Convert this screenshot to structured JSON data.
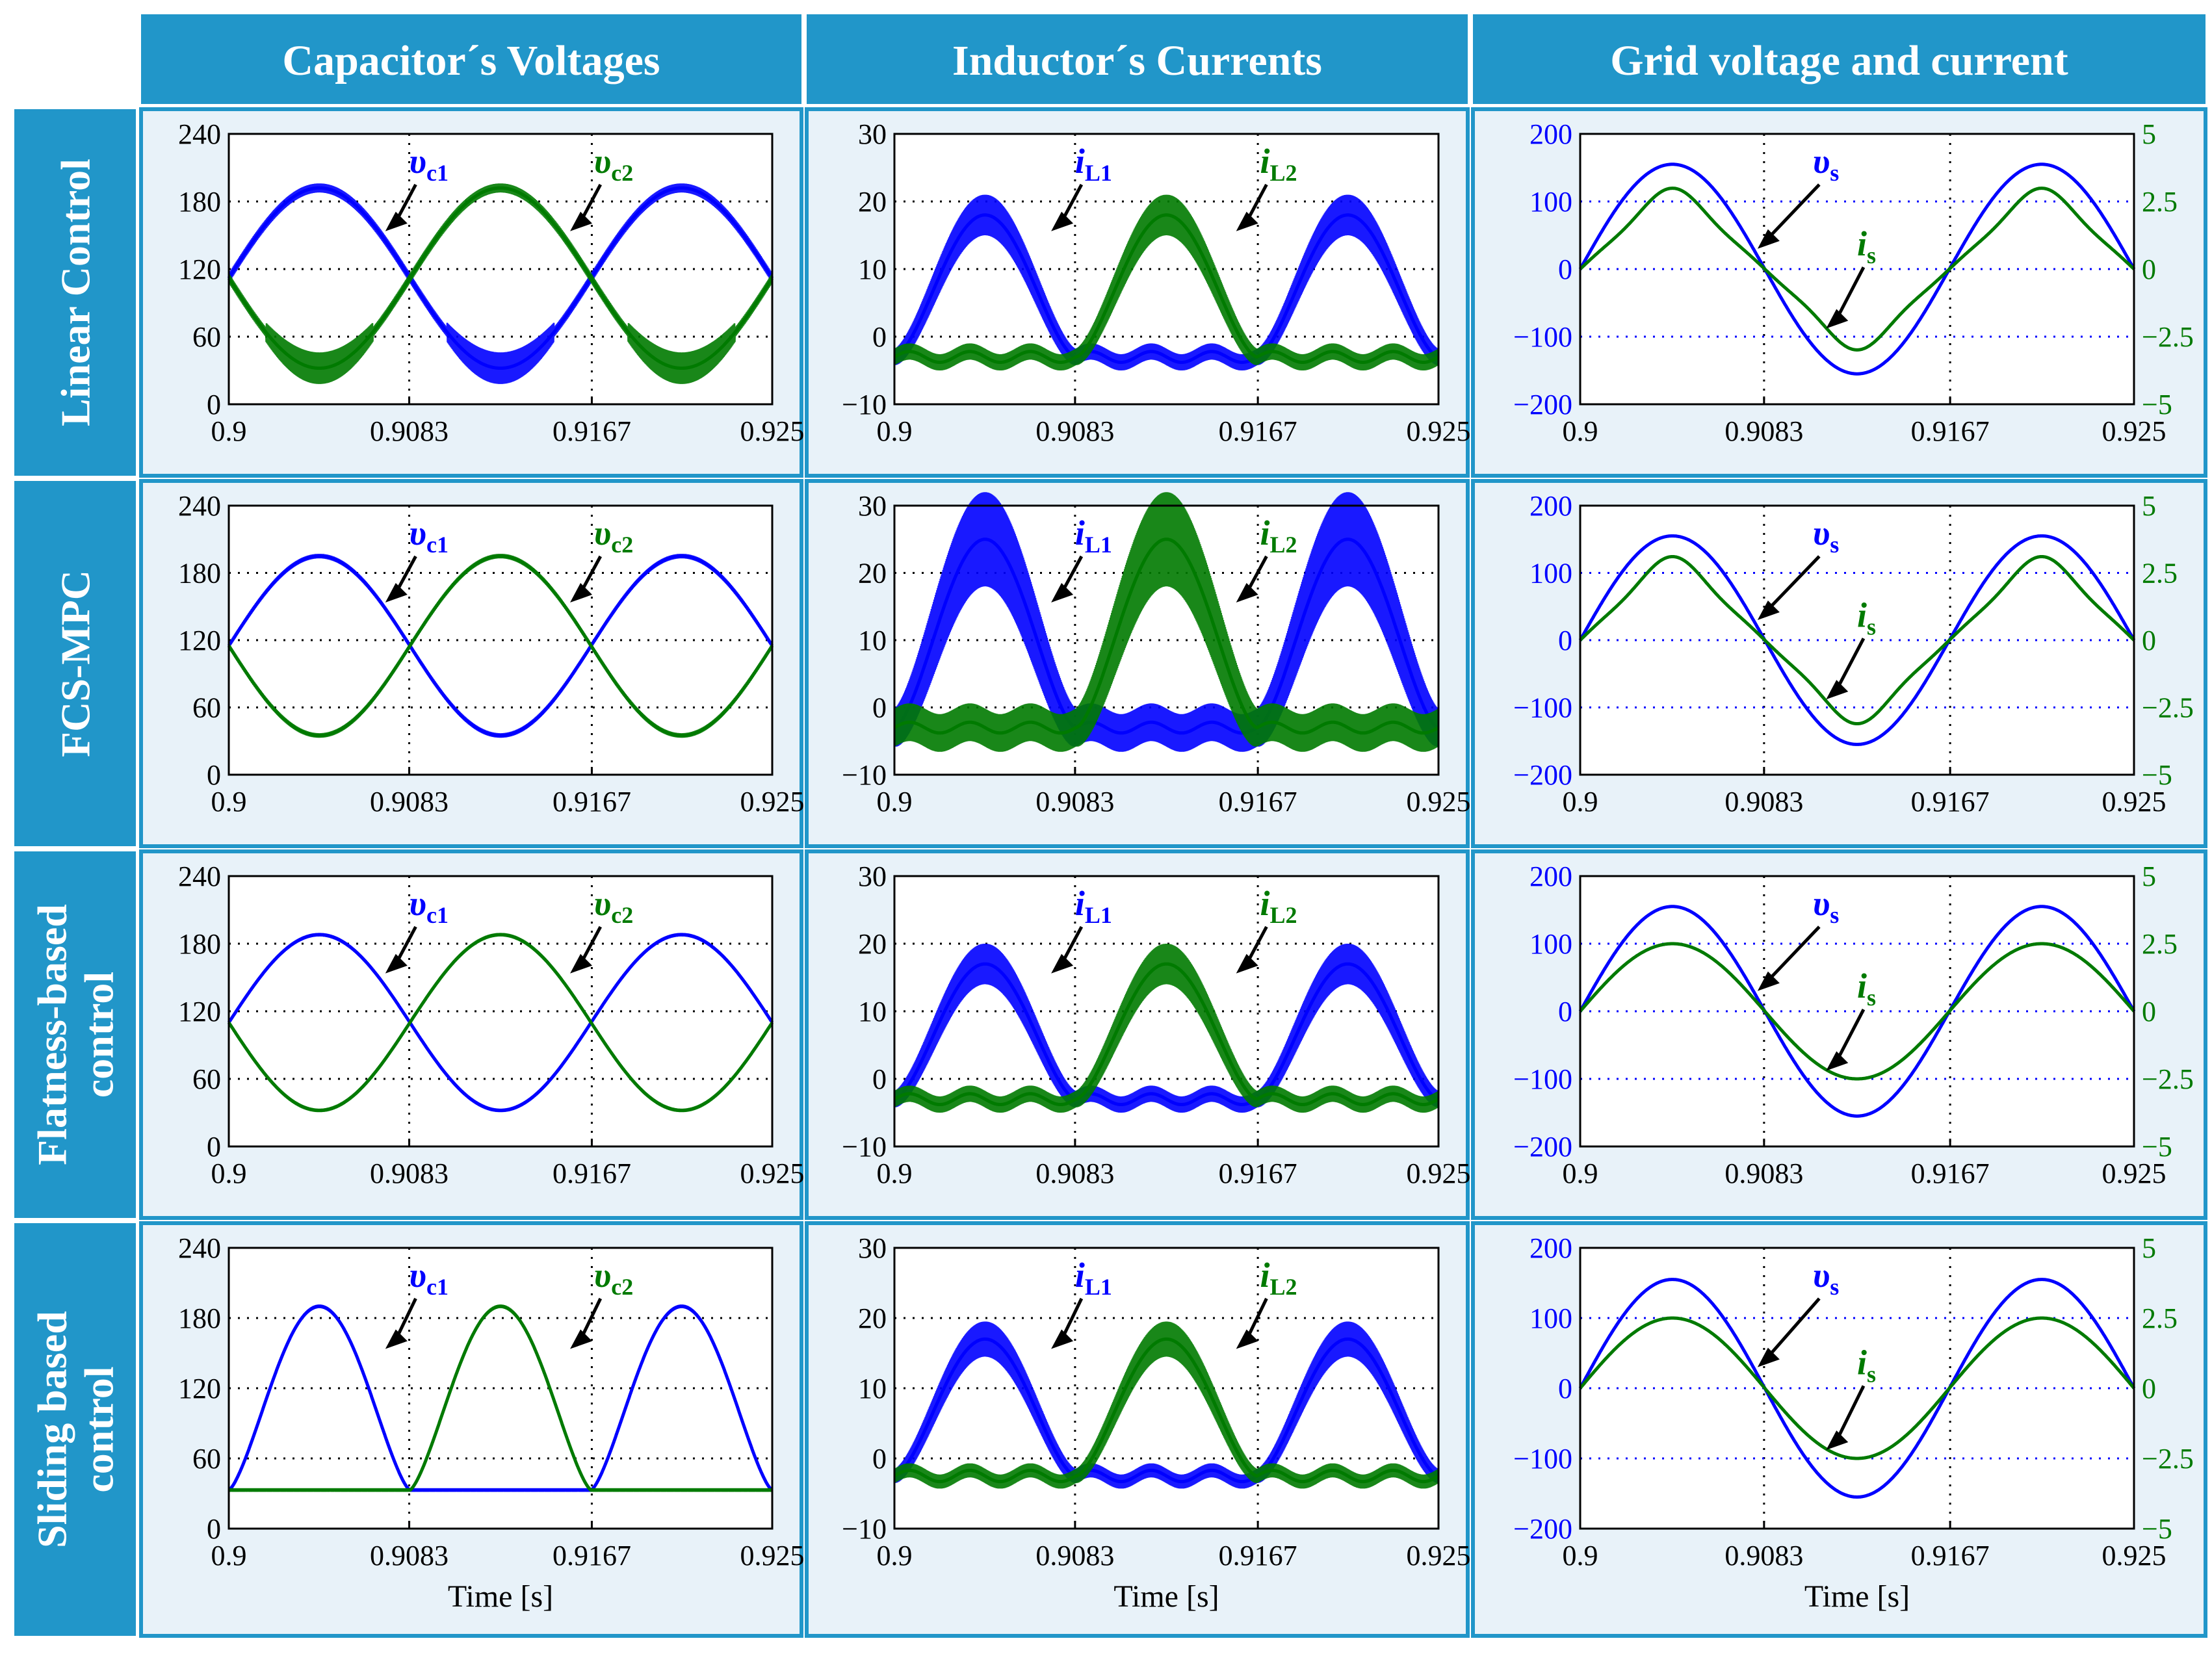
{
  "colors": {
    "header": "#2196c9",
    "panel_bg": "#e8f2f9",
    "cell_border": "#2196c9",
    "blue": "#0000ff",
    "green": "#007a00",
    "grid": "#000000"
  },
  "headers": {
    "col": [
      "Capacitor´s Voltages",
      "Inductor´s Currents",
      "Grid voltage and current"
    ],
    "row": [
      [
        "Linear Control"
      ],
      [
        "FCS-MPC"
      ],
      [
        "Flatness-based",
        "control"
      ],
      [
        "Sliding based",
        "control"
      ]
    ]
  },
  "xlabel": "Time [s]",
  "chart_data": [
    {
      "type": "line",
      "row": 0,
      "col": 0,
      "control": "Linear Control",
      "quantity": "Capacitor´s Voltages",
      "x_ticks": [
        "0.9",
        "0.9083",
        "0.9167",
        "0.925"
      ],
      "xlim": [
        0.9,
        0.925
      ],
      "y_ticks": [
        "0",
        "60",
        "120",
        "180",
        "240"
      ],
      "ylim": [
        0,
        240
      ],
      "waveform": "sine",
      "offset": 112,
      "amplitude": 80,
      "ripple": 4,
      "distortion": "notch",
      "series": [
        {
          "name": "υc1",
          "color": "#0000ff",
          "phase": 0
        },
        {
          "name": "υc2",
          "color": "#007a00",
          "phase": 180
        }
      ]
    },
    {
      "type": "line",
      "row": 0,
      "col": 1,
      "control": "Linear Control",
      "quantity": "Inductor´s Currents",
      "x_ticks": [
        "0.9",
        "0.9083",
        "0.9167",
        "0.925"
      ],
      "xlim": [
        0.9,
        0.925
      ],
      "y_ticks": [
        "−10",
        "0",
        "10",
        "20",
        "30"
      ],
      "ylim": [
        -10,
        30
      ],
      "waveform": "halfwave",
      "peak": 18,
      "floor": -3,
      "ripple": 3,
      "series": [
        {
          "name": "iL1",
          "color": "#0000ff",
          "phase": 0
        },
        {
          "name": "iL2",
          "color": "#007a00",
          "phase": 180
        }
      ]
    },
    {
      "type": "line",
      "row": 0,
      "col": 2,
      "control": "Linear Control",
      "quantity": "Grid voltage and current",
      "x_ticks": [
        "0.9",
        "0.9083",
        "0.9167",
        "0.925"
      ],
      "xlim": [
        0.9,
        0.925
      ],
      "y_ticks": [
        "−200",
        "−100",
        "0",
        "100",
        "200"
      ],
      "ylim": [
        -200,
        200
      ],
      "y2_ticks": [
        "−5",
        "−2.5",
        "0",
        "2.5",
        "5"
      ],
      "y2lim": [
        -5,
        5
      ],
      "series": [
        {
          "name": "υs",
          "axis": "left",
          "color": "#0000ff",
          "amplitude": 155
        },
        {
          "name": "is",
          "axis": "right",
          "color": "#007a00",
          "amplitude": 2.6,
          "distortion": "flat-top"
        }
      ]
    },
    {
      "type": "line",
      "row": 1,
      "col": 0,
      "control": "FCS-MPC",
      "quantity": "Capacitor´s Voltages",
      "x_ticks": [
        "0.9",
        "0.9083",
        "0.9167",
        "0.925"
      ],
      "xlim": [
        0.9,
        0.925
      ],
      "y_ticks": [
        "0",
        "60",
        "120",
        "180",
        "240"
      ],
      "ylim": [
        0,
        240
      ],
      "waveform": "sine",
      "offset": 115,
      "amplitude": 80,
      "ripple": 2,
      "series": [
        {
          "name": "υc1",
          "color": "#0000ff",
          "phase": 0
        },
        {
          "name": "υc2",
          "color": "#007a00",
          "phase": 180
        }
      ]
    },
    {
      "type": "line",
      "row": 1,
      "col": 1,
      "control": "FCS-MPC",
      "quantity": "Inductor´s Currents",
      "x_ticks": [
        "0.9",
        "0.9083",
        "0.9167",
        "0.925"
      ],
      "xlim": [
        0.9,
        0.925
      ],
      "y_ticks": [
        "−10",
        "0",
        "10",
        "20",
        "30"
      ],
      "ylim": [
        -10,
        30
      ],
      "waveform": "halfwave",
      "peak": 25,
      "floor": -3,
      "ripple": 7,
      "series": [
        {
          "name": "iL1",
          "color": "#0000ff",
          "phase": 0
        },
        {
          "name": "iL2",
          "color": "#007a00",
          "phase": 180
        }
      ]
    },
    {
      "type": "line",
      "row": 1,
      "col": 2,
      "control": "FCS-MPC",
      "quantity": "Grid voltage and current",
      "x_ticks": [
        "0.9",
        "0.9083",
        "0.9167",
        "0.925"
      ],
      "xlim": [
        0.9,
        0.925
      ],
      "y_ticks": [
        "−200",
        "−100",
        "0",
        "100",
        "200"
      ],
      "ylim": [
        -200,
        200
      ],
      "y2_ticks": [
        "−5",
        "−2.5",
        "0",
        "2.5",
        "5"
      ],
      "y2lim": [
        -5,
        5
      ],
      "series": [
        {
          "name": "υs",
          "axis": "left",
          "color": "#0000ff",
          "amplitude": 155
        },
        {
          "name": "is",
          "axis": "right",
          "color": "#007a00",
          "amplitude": 2.7,
          "distortion": "flat-top"
        }
      ]
    },
    {
      "type": "line",
      "row": 2,
      "col": 0,
      "control": "Flatness-based control",
      "quantity": "Capacitor´s Voltages",
      "x_ticks": [
        "0.9",
        "0.9083",
        "0.9167",
        "0.925"
      ],
      "xlim": [
        0.9,
        0.925
      ],
      "y_ticks": [
        "0",
        "60",
        "120",
        "180",
        "240"
      ],
      "ylim": [
        0,
        240
      ],
      "waveform": "sine",
      "offset": 110,
      "amplitude": 78,
      "ripple": 1.5,
      "series": [
        {
          "name": "υc1",
          "color": "#0000ff",
          "phase": 0
        },
        {
          "name": "υc2",
          "color": "#007a00",
          "phase": 180
        }
      ]
    },
    {
      "type": "line",
      "row": 2,
      "col": 1,
      "control": "Flatness-based control",
      "quantity": "Inductor´s Currents",
      "x_ticks": [
        "0.9",
        "0.9083",
        "0.9167",
        "0.925"
      ],
      "xlim": [
        0.9,
        0.925
      ],
      "y_ticks": [
        "−10",
        "0",
        "10",
        "20",
        "30"
      ],
      "ylim": [
        -10,
        30
      ],
      "waveform": "halfwave",
      "peak": 17,
      "floor": -3,
      "ripple": 3,
      "series": [
        {
          "name": "iL1",
          "color": "#0000ff",
          "phase": 0
        },
        {
          "name": "iL2",
          "color": "#007a00",
          "phase": 180
        }
      ]
    },
    {
      "type": "line",
      "row": 2,
      "col": 2,
      "control": "Flatness-based control",
      "quantity": "Grid voltage and current",
      "x_ticks": [
        "0.9",
        "0.9083",
        "0.9167",
        "0.925"
      ],
      "xlim": [
        0.9,
        0.925
      ],
      "y_ticks": [
        "−200",
        "−100",
        "0",
        "100",
        "200"
      ],
      "ylim": [
        -200,
        200
      ],
      "y2_ticks": [
        "−5",
        "−2.5",
        "0",
        "2.5",
        "5"
      ],
      "y2lim": [
        -5,
        5
      ],
      "series": [
        {
          "name": "υs",
          "axis": "left",
          "color": "#0000ff",
          "amplitude": 155
        },
        {
          "name": "is",
          "axis": "right",
          "color": "#007a00",
          "amplitude": 2.5
        }
      ]
    },
    {
      "type": "line",
      "row": 3,
      "col": 0,
      "control": "Sliding based control",
      "quantity": "Capacitor´s Voltages",
      "x_ticks": [
        "0.9",
        "0.9083",
        "0.9167",
        "0.925"
      ],
      "xlim": [
        0.9,
        0.925
      ],
      "y_ticks": [
        "0",
        "60",
        "120",
        "180",
        "240"
      ],
      "ylim": [
        0,
        240
      ],
      "waveform": "clipped",
      "floor": 33,
      "peak": 190,
      "ripple": 1.5,
      "series": [
        {
          "name": "υc1",
          "color": "#0000ff",
          "phase": 0
        },
        {
          "name": "υc2",
          "color": "#007a00",
          "phase": 180
        }
      ]
    },
    {
      "type": "line",
      "row": 3,
      "col": 1,
      "control": "Sliding based control",
      "quantity": "Inductor´s Currents",
      "x_ticks": [
        "0.9",
        "0.9083",
        "0.9167",
        "0.925"
      ],
      "xlim": [
        0.9,
        0.925
      ],
      "y_ticks": [
        "−10",
        "0",
        "10",
        "20",
        "30"
      ],
      "ylim": [
        -10,
        30
      ],
      "waveform": "halfwave",
      "peak": 17,
      "floor": -2.5,
      "ripple": 2.5,
      "series": [
        {
          "name": "iL1",
          "color": "#0000ff",
          "phase": 0
        },
        {
          "name": "iL2",
          "color": "#007a00",
          "phase": 180
        }
      ]
    },
    {
      "type": "line",
      "row": 3,
      "col": 2,
      "control": "Sliding based control",
      "quantity": "Grid voltage and current",
      "x_ticks": [
        "0.9",
        "0.9083",
        "0.9167",
        "0.925"
      ],
      "xlim": [
        0.9,
        0.925
      ],
      "y_ticks": [
        "−200",
        "−100",
        "0",
        "100",
        "200"
      ],
      "ylim": [
        -200,
        200
      ],
      "y2_ticks": [
        "−5",
        "−2.5",
        "0",
        "2.5",
        "5"
      ],
      "y2lim": [
        -5,
        5
      ],
      "series": [
        {
          "name": "υs",
          "axis": "left",
          "color": "#0000ff",
          "amplitude": 155
        },
        {
          "name": "is",
          "axis": "right",
          "color": "#007a00",
          "amplitude": 2.5
        }
      ]
    }
  ]
}
